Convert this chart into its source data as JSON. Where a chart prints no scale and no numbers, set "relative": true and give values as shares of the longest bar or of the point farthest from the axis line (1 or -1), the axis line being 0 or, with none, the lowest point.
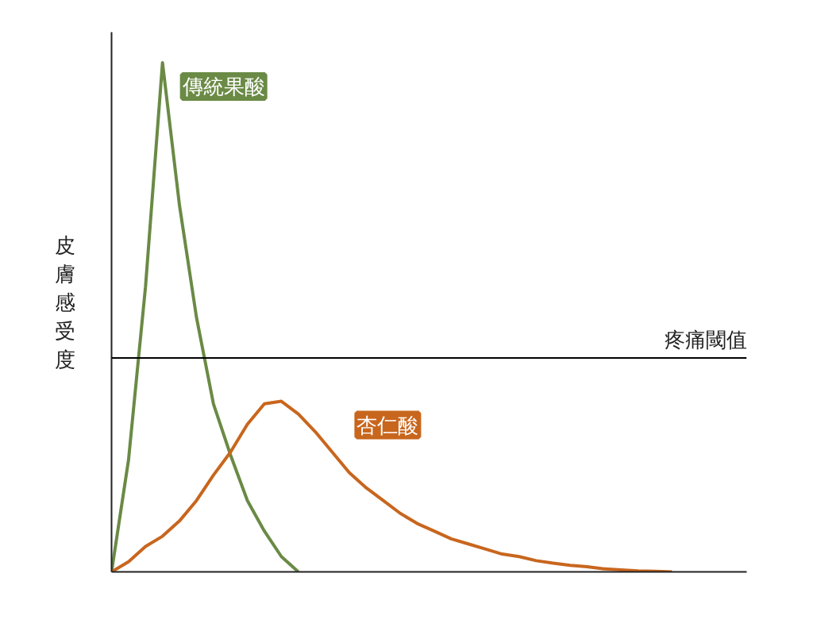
{
  "chart_data": {
    "type": "line",
    "relative": true,
    "ylabel": "皮膚感受度",
    "categories": [
      null,
      null,
      null,
      null,
      null,
      null,
      null,
      null,
      null,
      null,
      null,
      null,
      null,
      null,
      null,
      null,
      null,
      null,
      null,
      null,
      null,
      null,
      null,
      null,
      null,
      null,
      null,
      null,
      null,
      null,
      null,
      null,
      null,
      null,
      null,
      null,
      null,
      null
    ],
    "series": [
      {
        "name": "傳統果酸",
        "color": "#6a8a45",
        "values": [
          0,
          0.22,
          0.56,
          1,
          0.72,
          0.5,
          0.33,
          0.23,
          0.14,
          0.08,
          0.03,
          0.0,
          null,
          null,
          null,
          null,
          null,
          null,
          null,
          null,
          null,
          null,
          null,
          null,
          null,
          null,
          null,
          null,
          null,
          null,
          null,
          null,
          null,
          null,
          null,
          null,
          null,
          null
        ]
      },
      {
        "name": "杏仁酸",
        "color": "#c8661e",
        "values": [
          0,
          0.02,
          0.05,
          0.07,
          0.1,
          0.14,
          0.19,
          0.235,
          0.29,
          0.33,
          0.335,
          0.31,
          0.275,
          0.235,
          0.195,
          0.165,
          0.14,
          0.115,
          0.095,
          0.08,
          0.065,
          0.055,
          0.045,
          0.035,
          0.03,
          0.022,
          0.017,
          0.013,
          0.01,
          0.006,
          0.004,
          0.002,
          0.001,
          0,
          null,
          null,
          null,
          null
        ]
      }
    ],
    "ref_lines": [
      {
        "axis": "y",
        "value": 0.42,
        "label": "疼痛閾值",
        "color": "#000000"
      }
    ],
    "grid": false
  }
}
